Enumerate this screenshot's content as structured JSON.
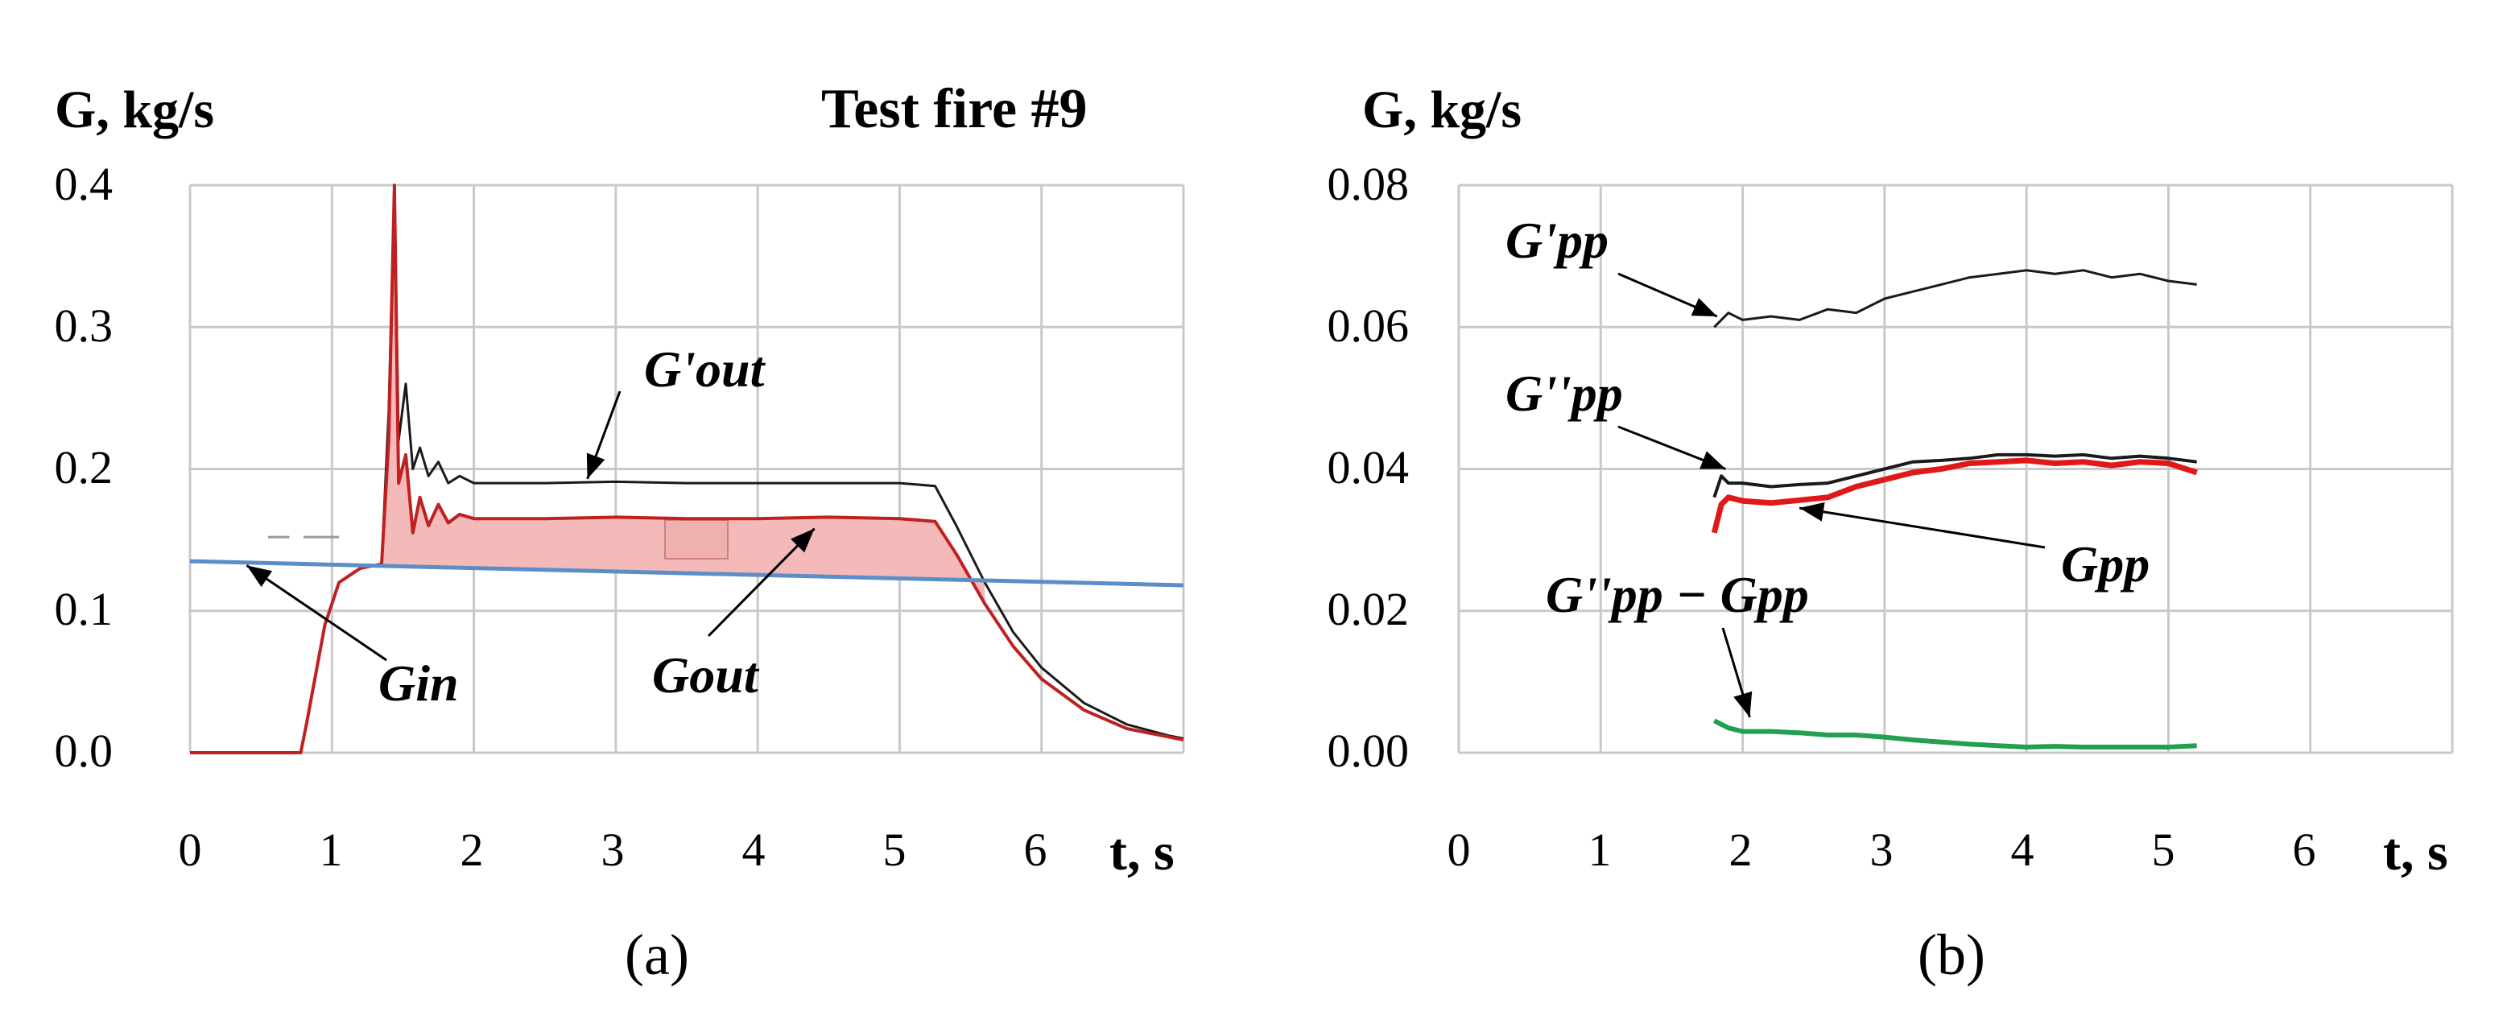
{
  "title": "Test fire #9",
  "colors": {
    "black": "#1a1a1a",
    "red": "#e01818",
    "darkred": "#b03030",
    "fill": "#f4b9b9",
    "blue": "#5b8ec7",
    "green": "#22a050",
    "grid": "#c9c9c9"
  },
  "chart_data": [
    {
      "id": "a",
      "type": "line",
      "subtitle": "(a)",
      "ylabel": "G, kg/s",
      "xlabel": "t, s",
      "xlim": [
        0,
        7
      ],
      "ylim": [
        0,
        0.4
      ],
      "xticks": [
        "0",
        "1",
        "2",
        "3",
        "4",
        "5",
        "6"
      ],
      "yticks": [
        "0.0",
        "0.1",
        "0.2",
        "0.3",
        "0.4"
      ],
      "grid": true,
      "series": [
        {
          "name": "G'out",
          "color": "#1a1a1a",
          "x": [
            0,
            0.78,
            0.82,
            0.95,
            1.05,
            1.2,
            1.35,
            1.4,
            1.44,
            1.47,
            1.52,
            1.57,
            1.62,
            1.68,
            1.75,
            1.82,
            1.9,
            2.0,
            2.5,
            3.0,
            3.5,
            4.0,
            4.5,
            5.0,
            5.25,
            5.4,
            5.6,
            5.8,
            6.0,
            6.3,
            6.6,
            6.9,
            7.0
          ],
          "y": [
            0,
            0,
            0.02,
            0.09,
            0.12,
            0.13,
            0.133,
            0.24,
            0.4,
            0.22,
            0.26,
            0.2,
            0.215,
            0.195,
            0.205,
            0.19,
            0.195,
            0.19,
            0.19,
            0.191,
            0.19,
            0.19,
            0.19,
            0.19,
            0.188,
            0.16,
            0.12,
            0.085,
            0.06,
            0.035,
            0.02,
            0.012,
            0.01
          ]
        },
        {
          "name": "Gout",
          "color": "#c02020",
          "x": [
            0,
            0.78,
            0.82,
            0.95,
            1.05,
            1.2,
            1.35,
            1.4,
            1.44,
            1.47,
            1.52,
            1.57,
            1.62,
            1.68,
            1.75,
            1.82,
            1.9,
            2.0,
            2.5,
            3.0,
            3.5,
            4.0,
            4.5,
            5.0,
            5.25,
            5.4,
            5.6,
            5.8,
            6.0,
            6.3,
            6.6,
            6.9,
            7.0
          ],
          "y": [
            0,
            0,
            0.02,
            0.09,
            0.12,
            0.13,
            0.133,
            0.22,
            0.4,
            0.19,
            0.21,
            0.155,
            0.18,
            0.16,
            0.175,
            0.162,
            0.168,
            0.165,
            0.165,
            0.166,
            0.165,
            0.165,
            0.166,
            0.165,
            0.163,
            0.14,
            0.105,
            0.075,
            0.052,
            0.03,
            0.017,
            0.011,
            0.009
          ]
        },
        {
          "name": "Gin",
          "color": "#5b8ec7",
          "x": [
            0,
            7.0
          ],
          "y": [
            0.135,
            0.118
          ]
        }
      ],
      "annotations": [
        {
          "text": "G'out",
          "x": 3.5,
          "y": 0.265,
          "tip_x": 2.8,
          "tip_y": 0.193
        },
        {
          "text": "Gout",
          "x": 3.75,
          "y": 0.05,
          "tip_x": 4.4,
          "tip_y": 0.158
        },
        {
          "text": "Gin",
          "x": 1.35,
          "y": 0.04,
          "tip_x": 0.4,
          "tip_y": 0.132
        }
      ]
    },
    {
      "id": "b",
      "type": "line",
      "subtitle": "(b)",
      "ylabel": "G, kg/s",
      "xlabel": "t, s",
      "xlim": [
        0,
        7
      ],
      "ylim": [
        0,
        0.08
      ],
      "xticks": [
        "0",
        "1",
        "2",
        "3",
        "4",
        "5",
        "6"
      ],
      "yticks": [
        "0.00",
        "0.02",
        "0.04",
        "0.06",
        "0.08"
      ],
      "grid": true,
      "series": [
        {
          "name": "G'pp",
          "color": "#1a1a1a",
          "x": [
            1.8,
            1.9,
            2.0,
            2.2,
            2.4,
            2.6,
            2.8,
            3.0,
            3.2,
            3.4,
            3.6,
            3.8,
            4.0,
            4.2,
            4.4,
            4.6,
            4.8,
            5.0,
            5.2
          ],
          "y": [
            0.06,
            0.062,
            0.061,
            0.0615,
            0.061,
            0.0625,
            0.062,
            0.064,
            0.065,
            0.066,
            0.067,
            0.0675,
            0.068,
            0.0675,
            0.068,
            0.067,
            0.0675,
            0.0665,
            0.066
          ]
        },
        {
          "name": "G''pp",
          "color": "#1a1a1a",
          "x": [
            1.8,
            1.85,
            1.9,
            2.0,
            2.2,
            2.4,
            2.6,
            2.8,
            3.0,
            3.2,
            3.4,
            3.6,
            3.8,
            4.0,
            4.2,
            4.4,
            4.6,
            4.8,
            5.0,
            5.2
          ],
          "y": [
            0.036,
            0.039,
            0.038,
            0.038,
            0.0375,
            0.0378,
            0.038,
            0.039,
            0.04,
            0.041,
            0.0412,
            0.0415,
            0.042,
            0.042,
            0.0418,
            0.042,
            0.0415,
            0.0418,
            0.0415,
            0.041
          ]
        },
        {
          "name": "Gpp",
          "color": "#e01818",
          "x": [
            1.8,
            1.85,
            1.9,
            2.0,
            2.2,
            2.4,
            2.6,
            2.8,
            3.0,
            3.2,
            3.4,
            3.6,
            3.8,
            4.0,
            4.2,
            4.4,
            4.6,
            4.8,
            5.0,
            5.2
          ],
          "y": [
            0.031,
            0.035,
            0.036,
            0.0355,
            0.0352,
            0.0356,
            0.036,
            0.0375,
            0.0385,
            0.0395,
            0.04,
            0.0408,
            0.041,
            0.0412,
            0.0408,
            0.041,
            0.0405,
            0.041,
            0.0408,
            0.0395
          ]
        },
        {
          "name": "G''pp − Gpp",
          "color": "#22a050",
          "x": [
            1.8,
            1.9,
            2.0,
            2.2,
            2.4,
            2.6,
            2.8,
            3.0,
            3.2,
            3.4,
            3.6,
            3.8,
            4.0,
            4.2,
            4.4,
            4.6,
            4.8,
            5.0,
            5.2
          ],
          "y": [
            0.0045,
            0.0035,
            0.003,
            0.003,
            0.0028,
            0.0025,
            0.0025,
            0.0022,
            0.0018,
            0.0015,
            0.0012,
            0.001,
            0.0008,
            0.0009,
            0.0008,
            0.0008,
            0.0008,
            0.0008,
            0.001
          ]
        }
      ],
      "annotations": [
        {
          "text": "G'pp",
          "x": 0.95,
          "y": 0.072,
          "tip_x": 1.82,
          "tip_y": 0.0615
        },
        {
          "text": "G''pp",
          "x": 0.95,
          "y": 0.05,
          "tip_x": 1.88,
          "tip_y": 0.04
        },
        {
          "text": "Gpp",
          "x": 5.2,
          "y": 0.025,
          "tip_x": 2.4,
          "tip_y": 0.0345
        },
        {
          "text": "G''pp − Gpp",
          "x": 1.95,
          "y": 0.016,
          "tip_x": 2.05,
          "tip_y": 0.005
        }
      ]
    }
  ]
}
